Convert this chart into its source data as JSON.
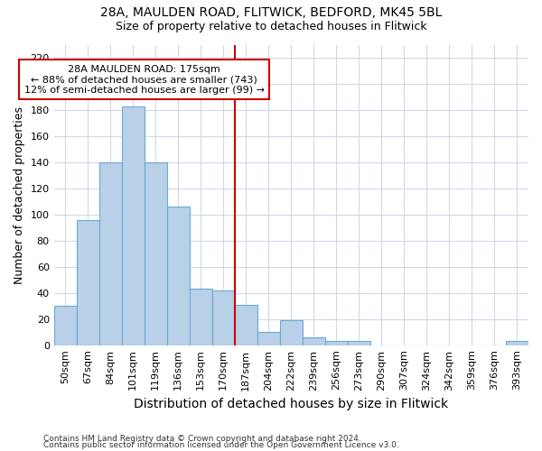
{
  "title_line1": "28A, MAULDEN ROAD, FLITWICK, BEDFORD, MK45 5BL",
  "title_line2": "Size of property relative to detached houses in Flitwick",
  "xlabel": "Distribution of detached houses by size in Flitwick",
  "ylabel": "Number of detached properties",
  "categories": [
    "50sqm",
    "67sqm",
    "84sqm",
    "101sqm",
    "119sqm",
    "136sqm",
    "153sqm",
    "170sqm",
    "187sqm",
    "204sqm",
    "222sqm",
    "239sqm",
    "256sqm",
    "273sqm",
    "290sqm",
    "307sqm",
    "324sqm",
    "342sqm",
    "359sqm",
    "376sqm",
    "393sqm"
  ],
  "values": [
    30,
    96,
    140,
    183,
    140,
    106,
    43,
    42,
    31,
    10,
    19,
    6,
    3,
    3,
    0,
    0,
    0,
    0,
    0,
    0,
    3
  ],
  "bar_color": "#b8d0e8",
  "bar_edge_color": "#6aaad4",
  "vline_x_index": 7.5,
  "vline_color": "#cc0000",
  "annotation_line1": "28A MAULDEN ROAD: 175sqm",
  "annotation_line2": "← 88% of detached houses are smaller (743)",
  "annotation_line3": "12% of semi-detached houses are larger (99) →",
  "annotation_box_color": "#ffffff",
  "annotation_box_edge": "#cc0000",
  "ylim": [
    0,
    230
  ],
  "yticks": [
    0,
    20,
    40,
    60,
    80,
    100,
    120,
    140,
    160,
    180,
    200,
    220
  ],
  "background_color": "#ffffff",
  "grid_color": "#d0d8e8",
  "title_fontsize": 10,
  "subtitle_fontsize": 9,
  "axis_label_fontsize": 9,
  "tick_fontsize": 8,
  "annotation_fontsize": 8,
  "footer_fontsize": 6.5,
  "footer_line1": "Contains HM Land Registry data © Crown copyright and database right 2024.",
  "footer_line2": "Contains public sector information licensed under the Open Government Licence v3.0."
}
